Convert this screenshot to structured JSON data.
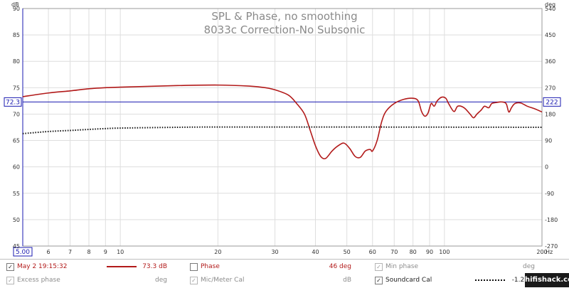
{
  "chart_data": {
    "type": "line",
    "title": "SPL & Phase, no smoothing",
    "subtitle": "8033c Correction-No Subsonic",
    "x_scale": "log",
    "xlim": [
      5,
      200
    ],
    "x_unit": "Hz",
    "x_ticks": [
      {
        "v": 5,
        "label": "5.00"
      },
      {
        "v": 6,
        "label": "6"
      },
      {
        "v": 7,
        "label": "7"
      },
      {
        "v": 8,
        "label": "8"
      },
      {
        "v": 9,
        "label": "9"
      },
      {
        "v": 10,
        "label": "10"
      },
      {
        "v": 20,
        "label": "20"
      },
      {
        "v": 30,
        "label": "30"
      },
      {
        "v": 40,
        "label": "40"
      },
      {
        "v": 50,
        "label": "50"
      },
      {
        "v": 60,
        "label": "60"
      },
      {
        "v": 70,
        "label": "70"
      },
      {
        "v": 80,
        "label": "80"
      },
      {
        "v": 90,
        "label": "90"
      },
      {
        "v": 100,
        "label": "100"
      },
      {
        "v": 200,
        "label": "200"
      }
    ],
    "y_left": {
      "unit": "dB",
      "lim": [
        45,
        90
      ],
      "ticks": [
        45,
        50,
        55,
        60,
        65,
        70,
        75,
        80,
        85,
        90
      ]
    },
    "y_right": {
      "unit": "deg",
      "lim": [
        -270,
        540
      ],
      "ticks": [
        -270,
        -180,
        -90,
        0,
        90,
        180,
        270,
        360,
        450,
        540
      ]
    },
    "grid": true,
    "cursor": {
      "spl": 72.3,
      "spl_label": "72.3",
      "phase_label": "222"
    },
    "series": [
      {
        "name": "May 2 19:15:32",
        "axis": "left",
        "color": "#b21a1a",
        "style": "solid",
        "points": [
          [
            5,
            73.3
          ],
          [
            6,
            74.0
          ],
          [
            7,
            74.4
          ],
          [
            8,
            74.8
          ],
          [
            9,
            75.0
          ],
          [
            10,
            75.1
          ],
          [
            15,
            75.4
          ],
          [
            20,
            75.5
          ],
          [
            25,
            75.3
          ],
          [
            28,
            75.0
          ],
          [
            30,
            74.6
          ],
          [
            33,
            73.6
          ],
          [
            35,
            72.0
          ],
          [
            37,
            70.0
          ],
          [
            38.5,
            67.0
          ],
          [
            40,
            64.0
          ],
          [
            41.5,
            62.0
          ],
          [
            43,
            61.6
          ],
          [
            45,
            63.0
          ],
          [
            47,
            64.0
          ],
          [
            49,
            64.5
          ],
          [
            51,
            63.5
          ],
          [
            53,
            62.0
          ],
          [
            55,
            61.8
          ],
          [
            57,
            63.0
          ],
          [
            59,
            63.3
          ],
          [
            60,
            63.0
          ],
          [
            62,
            65.0
          ],
          [
            64,
            68.5
          ],
          [
            66,
            70.5
          ],
          [
            70,
            72.0
          ],
          [
            75,
            72.8
          ],
          [
            80,
            73.0
          ],
          [
            83,
            72.5
          ],
          [
            85,
            70.5
          ],
          [
            87,
            69.6
          ],
          [
            89,
            70.2
          ],
          [
            91,
            72.0
          ],
          [
            93,
            71.5
          ],
          [
            95,
            72.5
          ],
          [
            98,
            73.2
          ],
          [
            101,
            73.0
          ],
          [
            103,
            72.0
          ],
          [
            107,
            70.5
          ],
          [
            110,
            71.5
          ],
          [
            115,
            71.2
          ],
          [
            120,
            70.0
          ],
          [
            123,
            69.3
          ],
          [
            126,
            70.0
          ],
          [
            130,
            70.8
          ],
          [
            133,
            71.5
          ],
          [
            137,
            71.2
          ],
          [
            140,
            72.0
          ],
          [
            145,
            72.2
          ],
          [
            150,
            72.3
          ],
          [
            155,
            72.0
          ],
          [
            158,
            70.4
          ],
          [
            161,
            71.2
          ],
          [
            165,
            72.0
          ],
          [
            172,
            72.1
          ],
          [
            180,
            71.5
          ],
          [
            190,
            71.0
          ],
          [
            200,
            70.4
          ]
        ]
      },
      {
        "name": "Soundcard Cal",
        "axis": "left",
        "color": "#111111",
        "style": "dotted",
        "points": [
          [
            5,
            66.3
          ],
          [
            6,
            66.7
          ],
          [
            7,
            66.9
          ],
          [
            8,
            67.1
          ],
          [
            9,
            67.25
          ],
          [
            10,
            67.35
          ],
          [
            15,
            67.5
          ],
          [
            20,
            67.55
          ],
          [
            50,
            67.55
          ],
          [
            200,
            67.5
          ]
        ]
      }
    ]
  },
  "legend": {
    "row1": [
      {
        "checked": true,
        "enabled": true,
        "label": "May 2 19:15:32",
        "value": "73.3 dB",
        "color": "#b21a1a"
      },
      {
        "checked": false,
        "enabled": true,
        "label": "Phase",
        "value": "46 deg"
      },
      {
        "checked": true,
        "enabled": false,
        "label": "Min phase",
        "value": "deg"
      }
    ],
    "row2": [
      {
        "checked": true,
        "enabled": false,
        "label": "Excess phase",
        "value": "deg"
      },
      {
        "checked": true,
        "enabled": false,
        "label": "Mic/Meter Cal",
        "value": "dB"
      },
      {
        "checked": true,
        "enabled": true,
        "label": "Soundcard Cal",
        "value": "-1.2 dB"
      }
    ],
    "checkmark": "✓"
  },
  "badge": "hifishack.com"
}
